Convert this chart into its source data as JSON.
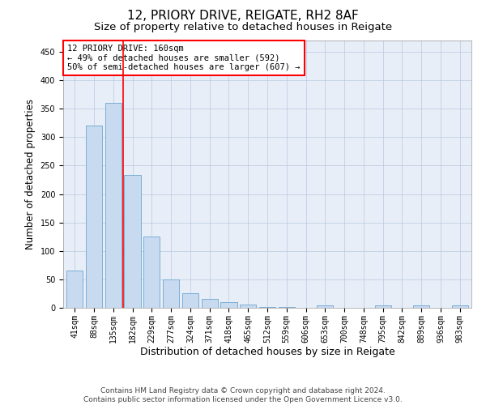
{
  "title": "12, PRIORY DRIVE, REIGATE, RH2 8AF",
  "subtitle": "Size of property relative to detached houses in Reigate",
  "xlabel": "Distribution of detached houses by size in Reigate",
  "ylabel": "Number of detached properties",
  "categories": [
    "41sqm",
    "88sqm",
    "135sqm",
    "182sqm",
    "229sqm",
    "277sqm",
    "324sqm",
    "371sqm",
    "418sqm",
    "465sqm",
    "512sqm",
    "559sqm",
    "606sqm",
    "653sqm",
    "700sqm",
    "748sqm",
    "795sqm",
    "842sqm",
    "889sqm",
    "936sqm",
    "983sqm"
  ],
  "values": [
    65,
    320,
    360,
    233,
    125,
    50,
    25,
    16,
    10,
    5,
    2,
    1,
    0,
    4,
    0,
    0,
    4,
    0,
    4,
    0,
    4
  ],
  "bar_color": "#c8daf0",
  "bar_edge_color": "#7baed4",
  "bar_width": 0.85,
  "vline_x": 2.5,
  "vline_color": "red",
  "annotation_text": "12 PRIORY DRIVE: 160sqm\n← 49% of detached houses are smaller (592)\n50% of semi-detached houses are larger (607) →",
  "annotation_box_color": "white",
  "annotation_box_edge_color": "red",
  "ylim": [
    0,
    470
  ],
  "yticks": [
    0,
    50,
    100,
    150,
    200,
    250,
    300,
    350,
    400,
    450
  ],
  "footer_line1": "Contains HM Land Registry data © Crown copyright and database right 2024.",
  "footer_line2": "Contains public sector information licensed under the Open Government Licence v3.0.",
  "title_fontsize": 11,
  "subtitle_fontsize": 9.5,
  "xlabel_fontsize": 9,
  "ylabel_fontsize": 8.5,
  "tick_fontsize": 7,
  "annotation_fontsize": 7.5,
  "footer_fontsize": 6.5,
  "bg_color": "#e8eef8"
}
